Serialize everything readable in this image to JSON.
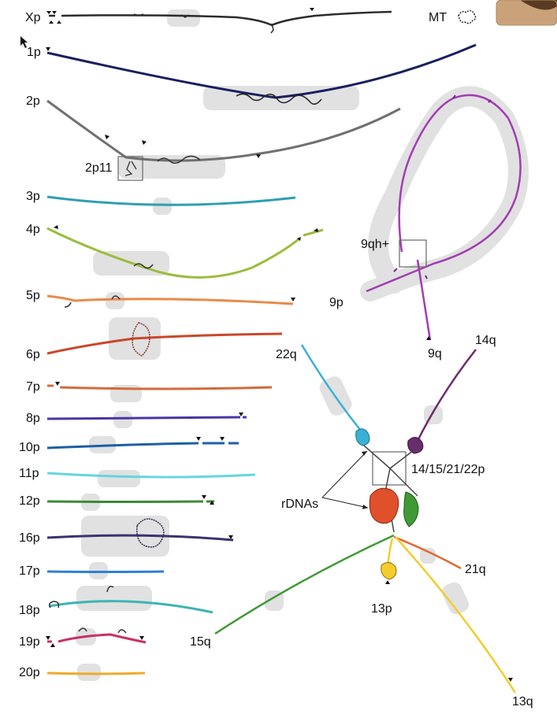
{
  "labels": {
    "xp": "Xp",
    "mt": "MT",
    "p1": "1p",
    "p2": "2p",
    "p2p11": "2p11",
    "p3": "3p",
    "p4": "4p",
    "p5": "5p",
    "p6": "6p",
    "p7": "7p",
    "p8": "8p",
    "p10": "10p",
    "p11": "11p",
    "p12": "12p",
    "p16": "16p",
    "p17": "17p",
    "p18": "18p",
    "p19": "19p",
    "p20": "20p",
    "nine_qh": "9qh+",
    "nine_p": "9p",
    "nine_q": "9q",
    "q22": "22q",
    "q14": "14q",
    "acro": "14/15/21/22p",
    "rdna": "rDNAs",
    "q21": "21q",
    "p13": "13p",
    "q15": "15q",
    "q13": "13q"
  },
  "colors": {
    "xp": "#2b2b2b",
    "p1": "#1b1f5e",
    "p2": "#707070",
    "p3": "#2f9fb0",
    "p4": "#9cbc3c",
    "p5": "#e98a4c",
    "p6": "#c9472a",
    "p7": "#d46a3c",
    "p8": "#4b35a6",
    "p10": "#1d5fa6",
    "p11": "#64d6df",
    "p12": "#3c8a34",
    "p16": "#3b3270",
    "p17": "#2f7fd6",
    "p18": "#3db4b4",
    "p19": "#c7306a",
    "p20": "#f0aa2a",
    "chr9": "#a23db2",
    "q22": "#3bb0d6",
    "q14": "#6a2d6c",
    "q15": "#3f9a35",
    "q21": "#e06a33",
    "q13": "#f2cd2b",
    "rdna": "#e0502a",
    "highlight": "#d9d9d9"
  }
}
